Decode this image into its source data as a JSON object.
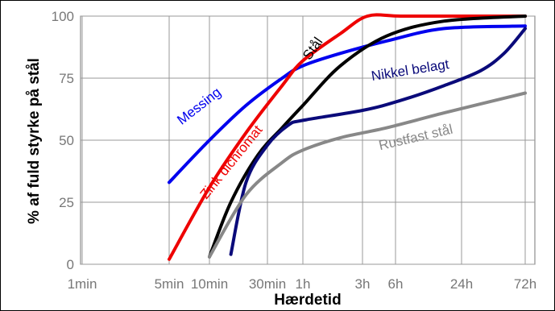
{
  "chart_data": {
    "type": "line",
    "title": "",
    "xlabel": "Hærdetid",
    "ylabel": "% af fuld styrke på stål",
    "x_ticks": [
      "1min",
      "5min",
      "10min",
      "30min",
      "1h",
      "3h",
      "6h",
      "24h",
      "72h"
    ],
    "x_ticks_minutes": [
      1,
      5,
      10,
      30,
      60,
      180,
      360,
      1440,
      4320
    ],
    "x_scale": "log",
    "y_ticks": [
      0,
      25,
      50,
      75,
      100
    ],
    "ylim": [
      0,
      100
    ],
    "grid": true,
    "legend": "none",
    "series": [
      {
        "name": "Messing",
        "color": "#0000ee",
        "x": [
          5,
          10,
          20,
          40,
          60,
          120,
          300,
          1000,
          4320
        ],
        "y": [
          33,
          50,
          64,
          75,
          80,
          85,
          90,
          95,
          96
        ]
      },
      {
        "name": "Zink dichromat",
        "color": "#ee0000",
        "x": [
          5,
          10,
          20,
          40,
          60,
          120,
          200,
          400,
          1440,
          4320
        ],
        "y": [
          2,
          31,
          53,
          72,
          82,
          93,
          100,
          100,
          100,
          100
        ]
      },
      {
        "name": "Stål",
        "color": "#000000",
        "x": [
          10,
          15,
          25,
          40,
          60,
          120,
          300,
          1000,
          4320
        ],
        "y": [
          3,
          25,
          44,
          55,
          64,
          80,
          92,
          98,
          100
        ]
      },
      {
        "name": "Nikkel belagt",
        "color": "#0a0a7a",
        "x": [
          15,
          20,
          30,
          45,
          60,
          180,
          400,
          1000,
          2000,
          3000,
          4320
        ],
        "y": [
          4,
          33,
          48,
          56,
          58,
          62,
          66,
          72,
          78,
          85,
          95
        ]
      },
      {
        "name": "Rustfast stål",
        "color": "#888888",
        "x": [
          10,
          20,
          40,
          60,
          120,
          300,
          1000,
          4320
        ],
        "y": [
          3,
          28,
          41,
          46,
          51,
          55,
          61,
          69
        ]
      }
    ]
  }
}
